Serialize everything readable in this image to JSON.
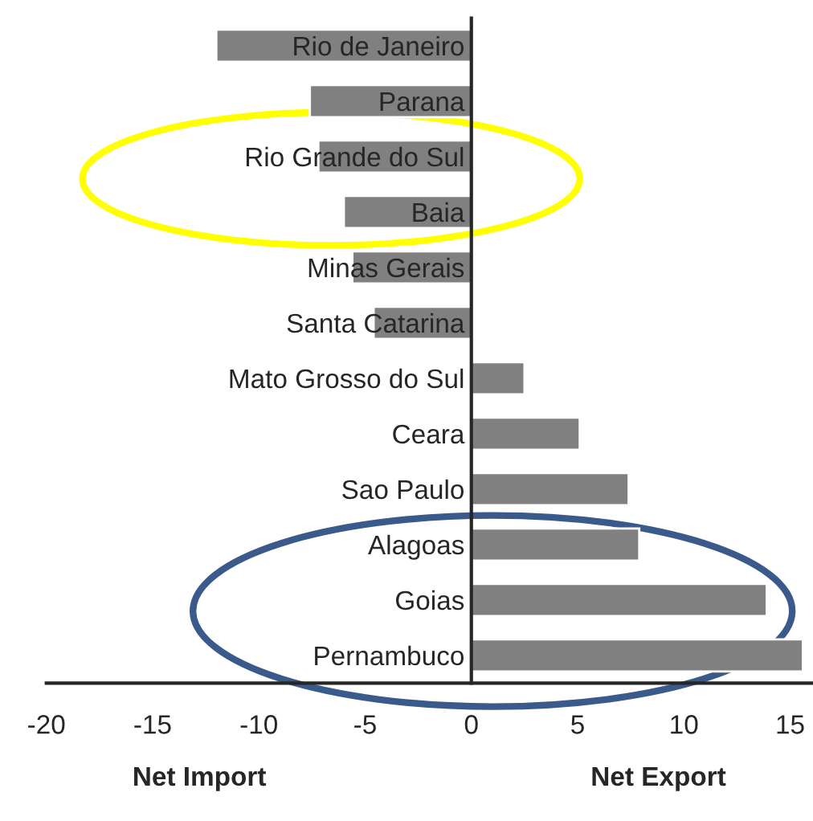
{
  "chart_data": {
    "type": "bar",
    "orientation": "horizontal",
    "categories": [
      "Rio de Janeiro",
      "Parana",
      "Rio Grande do Sul",
      "Baia",
      "Minas Gerais",
      "Santa Catarina",
      "Mato Grosso do Sul",
      "Ceara",
      "Sao Paulo",
      "Alagoas",
      "Goias",
      "Pernambuco"
    ],
    "values": [
      -12.0,
      -7.6,
      -7.2,
      -6.0,
      -5.6,
      -4.6,
      2.5,
      5.1,
      7.4,
      7.9,
      13.9,
      15.6
    ],
    "color": "#808080",
    "xlim": [
      -20,
      16
    ],
    "xticks": [
      -20,
      -15,
      -10,
      -5,
      0,
      5,
      10,
      15
    ],
    "grid": false,
    "legend": false,
    "annotations": [
      "Net Import",
      "Net Export"
    ]
  }
}
